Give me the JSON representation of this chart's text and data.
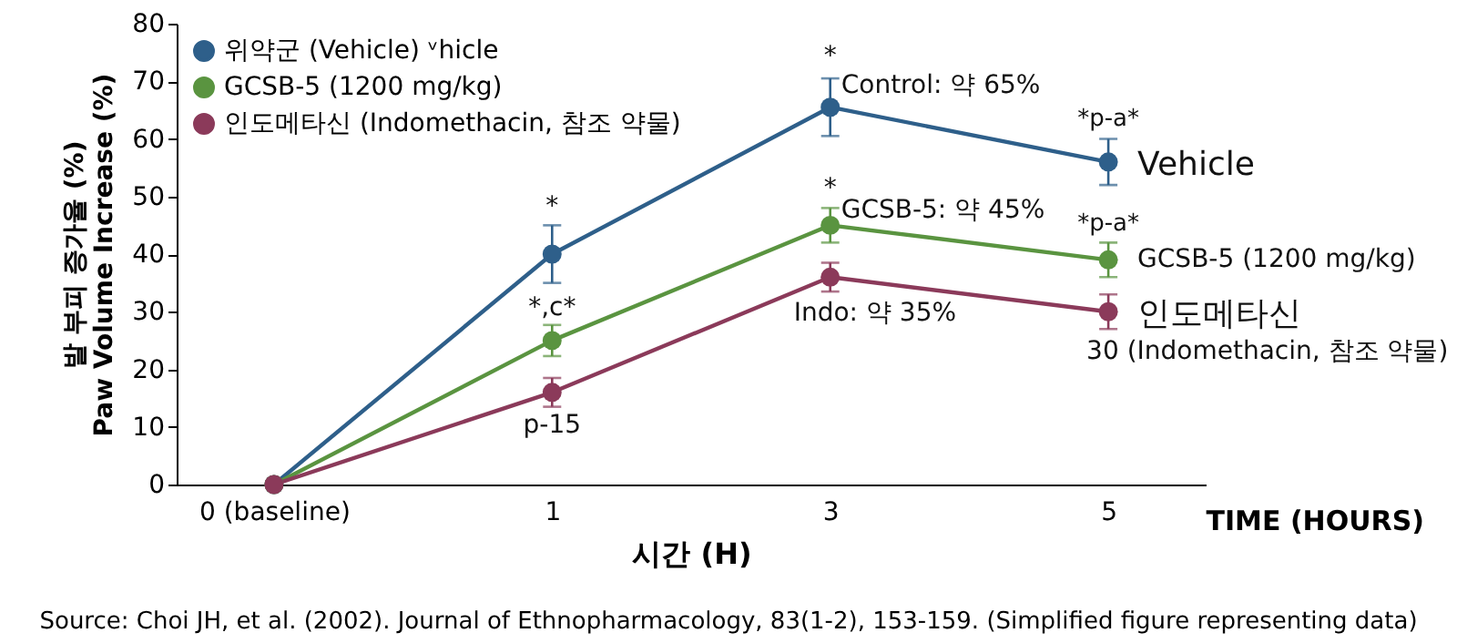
{
  "chart_data": {
    "type": "line",
    "xlabel": "시간 (H)",
    "ylabel": "발 부피 증가율 (%)\nPaw Volume Increase (%)",
    "categories": [
      "0 (baseline)",
      "1",
      "3",
      "5"
    ],
    "ylim": [
      0,
      80
    ],
    "yticks": [
      0,
      10,
      20,
      30,
      40,
      50,
      60,
      70,
      80
    ],
    "grid": false,
    "legend": "top left",
    "marker": "circle",
    "line_style": "solid",
    "series": [
      {
        "name": "위약군 (Vehicle)  ᵛhicle",
        "color": "#2e5f8a",
        "values": [
          0,
          40,
          65.5,
          56
        ],
        "errors": [
          null,
          5,
          5,
          4
        ]
      },
      {
        "name": "GCSB-5 (1200 mg/kg)",
        "color": "#5a9440",
        "values": [
          0,
          25,
          45,
          39
        ],
        "errors": [
          null,
          2.7,
          3,
          3
        ]
      },
      {
        "name": "인도메타신 (Indomethacin, 참조 약물)",
        "color": "#8b3a5a",
        "values": [
          0,
          16,
          36,
          30
        ],
        "errors": [
          null,
          2.5,
          2.5,
          3
        ]
      }
    ],
    "annotations": [
      {
        "text": "*",
        "x": "1",
        "y": 40
      },
      {
        "text": "*,c*",
        "x": "1",
        "y": 25
      },
      {
        "text": "p-15",
        "x": "1",
        "y": 16
      },
      {
        "text": "*",
        "x": "3",
        "y": 65.5
      },
      {
        "text": "Control: 약 65%",
        "x": "3",
        "y": 65.5
      },
      {
        "text": "*",
        "x": "3",
        "y": 45
      },
      {
        "text": "GCSB-5: 약 45%",
        "x": "3",
        "y": 45
      },
      {
        "text": "Indo: 약 35%",
        "x": "3",
        "y": 36
      },
      {
        "text": "*p-a*",
        "x": "5",
        "y": 56
      },
      {
        "text": "Vehicle",
        "x": "5",
        "y": 56
      },
      {
        "text": "*p-a*",
        "x": "5",
        "y": 39
      },
      {
        "text": "GCSB-5 (1200 mg/kg)",
        "x": "5",
        "y": 39
      },
      {
        "text": "인도메타신",
        "x": "5",
        "y": 30
      },
      {
        "text": "30 (Indomethacin, 참조 약물)",
        "x": "5",
        "y": 30
      },
      "TIME (HOURS)",
      "Source: Choi JH, et al. (2002). Journal of Ethnopharmacology, 83(1-2), 153-159. (Simplified figure representing data)"
    ]
  }
}
